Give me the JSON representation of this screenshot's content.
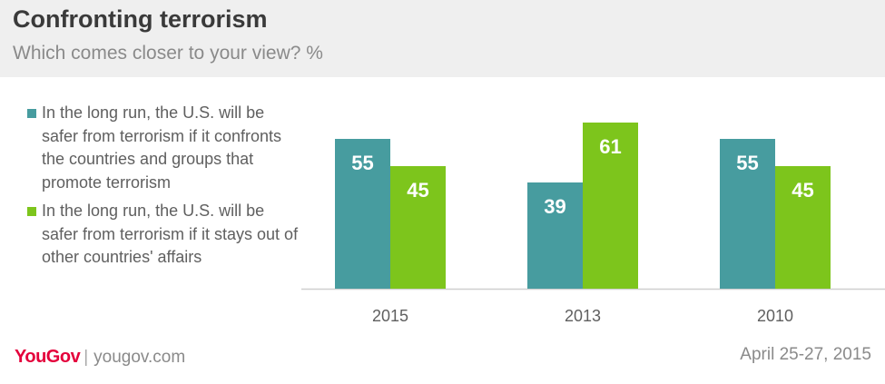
{
  "header": {
    "title": "Confronting terrorism",
    "subtitle": "Which comes closer to your view? %"
  },
  "legend": {
    "items": [
      {
        "label": "In the long run, the U.S. will be safer from terrorism if it confronts the countries and groups that promote terrorism",
        "color": "#479c9f"
      },
      {
        "label": "In the long run, the U.S. will be safer from terrorism if it stays out of other countries' affairs",
        "color": "#7dc51c"
      }
    ]
  },
  "chart_data": {
    "type": "bar",
    "categories": [
      "2015",
      "2013",
      "2010"
    ],
    "series": [
      {
        "values": [
          55,
          39,
          55
        ],
        "color": "#479c9f"
      },
      {
        "values": [
          45,
          61,
          45
        ],
        "color": "#7dc51c"
      }
    ],
    "ylim": [
      0,
      61
    ],
    "grid": false,
    "data_labels": true,
    "legend_position": "left"
  },
  "footer": {
    "logo": "YouGov",
    "site": "yougov.com",
    "date": "April 25-27, 2015"
  }
}
